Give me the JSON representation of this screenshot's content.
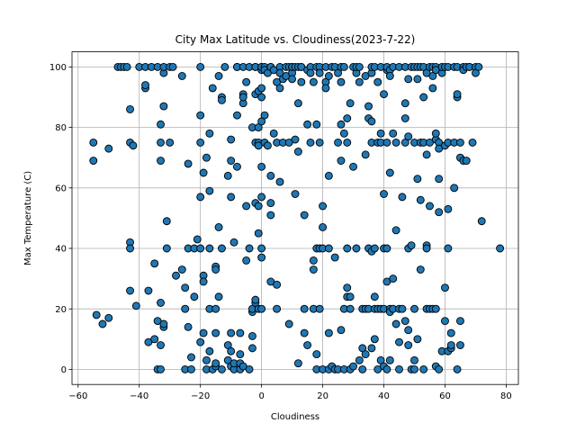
{
  "chart_data": {
    "type": "scatter",
    "title": "City Max Latitude vs. Cloudiness(2023-7-22)",
    "xlabel": "Cloudiness",
    "ylabel": "Max Temperature (C)",
    "xlim": [
      -62,
      84
    ],
    "ylim": [
      -5,
      105
    ],
    "xticks": [
      -60,
      -40,
      -20,
      0,
      20,
      40,
      60,
      80
    ],
    "yticks": [
      0,
      20,
      40,
      60,
      80,
      100
    ],
    "xtick_labels": [
      "−60",
      "−40",
      "−20",
      "0",
      "20",
      "40",
      "60",
      "80"
    ],
    "ytick_labels": [
      "0",
      "20",
      "40",
      "60",
      "80",
      "100"
    ],
    "grid": true,
    "marker_color": "#1f77b4",
    "marker_edge_color": "#000000",
    "points": [
      [
        -55,
        75
      ],
      [
        -55,
        69
      ],
      [
        -54,
        18
      ],
      [
        -52,
        15
      ],
      [
        -50,
        17
      ],
      [
        -50,
        73
      ],
      [
        -47,
        100
      ],
      [
        -46,
        100
      ],
      [
        -45,
        100
      ],
      [
        -44,
        100
      ],
      [
        -43,
        75
      ],
      [
        -43,
        86
      ],
      [
        -43,
        42
      ],
      [
        -43,
        40
      ],
      [
        -43,
        26
      ],
      [
        -42,
        74
      ],
      [
        -41,
        21
      ],
      [
        -40,
        100
      ],
      [
        -38,
        100
      ],
      [
        -38,
        93
      ],
      [
        -38,
        94
      ],
      [
        -37,
        9
      ],
      [
        -37,
        26
      ],
      [
        -36,
        100
      ],
      [
        -35,
        10
      ],
      [
        -35,
        35
      ],
      [
        -34,
        16
      ],
      [
        -34,
        0
      ],
      [
        -34,
        100
      ],
      [
        -33,
        8
      ],
      [
        -33,
        22
      ],
      [
        -33,
        75
      ],
      [
        -33,
        81
      ],
      [
        -33,
        69
      ],
      [
        -33,
        0
      ],
      [
        -32,
        14
      ],
      [
        -32,
        15
      ],
      [
        -32,
        98
      ],
      [
        -32,
        100
      ],
      [
        -32,
        87
      ],
      [
        -31,
        49
      ],
      [
        -31,
        40
      ],
      [
        -30,
        100
      ],
      [
        -30,
        75
      ],
      [
        -29,
        100
      ],
      [
        -28,
        31
      ],
      [
        -26,
        97
      ],
      [
        -26,
        33
      ],
      [
        -25,
        27
      ],
      [
        -25,
        20
      ],
      [
        -25,
        0
      ],
      [
        -24,
        68
      ],
      [
        -24,
        40
      ],
      [
        -24,
        14
      ],
      [
        -23,
        0
      ],
      [
        -23,
        4
      ],
      [
        -22,
        24
      ],
      [
        -22,
        40
      ],
      [
        -21,
        43
      ],
      [
        -20,
        100
      ],
      [
        -20,
        84
      ],
      [
        -20,
        57
      ],
      [
        -20,
        75
      ],
      [
        -20,
        9
      ],
      [
        -20,
        40
      ],
      [
        -19,
        65
      ],
      [
        -19,
        31
      ],
      [
        -19,
        29
      ],
      [
        -19,
        12
      ],
      [
        -18,
        0
      ],
      [
        -18,
        70
      ],
      [
        -18,
        3
      ],
      [
        -17,
        6
      ],
      [
        -17,
        20
      ],
      [
        -17,
        78
      ],
      [
        -17,
        59
      ],
      [
        -17,
        40
      ],
      [
        -16,
        0
      ],
      [
        -16,
        93
      ],
      [
        -15,
        12
      ],
      [
        -15,
        1
      ],
      [
        -15,
        20
      ],
      [
        -15,
        34
      ],
      [
        -15,
        33
      ],
      [
        -15,
        2
      ],
      [
        -14,
        24
      ],
      [
        -14,
        97
      ],
      [
        -14,
        47
      ],
      [
        -13,
        0
      ],
      [
        -13,
        90
      ],
      [
        -13,
        89
      ],
      [
        -13,
        40
      ],
      [
        -12,
        100
      ],
      [
        -11,
        64
      ],
      [
        -11,
        8
      ],
      [
        -11,
        3
      ],
      [
        -10,
        12
      ],
      [
        -10,
        76
      ],
      [
        -10,
        69
      ],
      [
        -10,
        57
      ],
      [
        -10,
        6
      ],
      [
        -10,
        1
      ],
      [
        -9,
        0
      ],
      [
        -9,
        42
      ],
      [
        -9,
        2
      ],
      [
        -8,
        100
      ],
      [
        -8,
        100
      ],
      [
        -8,
        84
      ],
      [
        -8,
        67
      ],
      [
        -7,
        0
      ],
      [
        -7,
        2
      ],
      [
        -7,
        12
      ],
      [
        -7,
        5
      ],
      [
        -6,
        100
      ],
      [
        -6,
        91
      ],
      [
        -6,
        88
      ],
      [
        -6,
        90
      ],
      [
        -6,
        1
      ],
      [
        -5,
        36
      ],
      [
        -5,
        54
      ],
      [
        -5,
        95
      ],
      [
        -4,
        100
      ],
      [
        -4,
        0
      ],
      [
        -4,
        40
      ],
      [
        -3,
        11
      ],
      [
        -3,
        7
      ],
      [
        -3,
        19
      ],
      [
        -3,
        80
      ],
      [
        -3,
        20
      ],
      [
        -2,
        22
      ],
      [
        -2,
        23
      ],
      [
        -2,
        100
      ],
      [
        -2,
        91
      ],
      [
        -2,
        75
      ],
      [
        -2,
        55
      ],
      [
        -2,
        100
      ],
      [
        -1,
        45
      ],
      [
        -1,
        54
      ],
      [
        -1,
        20
      ],
      [
        -1,
        80
      ],
      [
        -1,
        75
      ],
      [
        -1,
        92
      ],
      [
        -1,
        74
      ],
      [
        0,
        100
      ],
      [
        0,
        99
      ],
      [
        0,
        100
      ],
      [
        0,
        93
      ],
      [
        0,
        90
      ],
      [
        0,
        82
      ],
      [
        0,
        67
      ],
      [
        0,
        57
      ],
      [
        0,
        40
      ],
      [
        0,
        37
      ],
      [
        0,
        20
      ],
      [
        1,
        100
      ],
      [
        1,
        99
      ],
      [
        1,
        84
      ],
      [
        1,
        75
      ],
      [
        2,
        74
      ],
      [
        2,
        98
      ],
      [
        3,
        100
      ],
      [
        3,
        55
      ],
      [
        3,
        51
      ],
      [
        3,
        64
      ],
      [
        3,
        29
      ],
      [
        3,
        100
      ],
      [
        4,
        99
      ],
      [
        4,
        78
      ],
      [
        5,
        75
      ],
      [
        5,
        95
      ],
      [
        5,
        28
      ],
      [
        5,
        20
      ],
      [
        6,
        100
      ],
      [
        6,
        62
      ],
      [
        6,
        93
      ],
      [
        6,
        98
      ],
      [
        7,
        75
      ],
      [
        7,
        96
      ],
      [
        8,
        97
      ],
      [
        8,
        100
      ],
      [
        9,
        100
      ],
      [
        9,
        75
      ],
      [
        9,
        15
      ],
      [
        10,
        100
      ],
      [
        10,
        98
      ],
      [
        10,
        100
      ],
      [
        10,
        96
      ],
      [
        11,
        100
      ],
      [
        11,
        58
      ],
      [
        11,
        76
      ],
      [
        12,
        88
      ],
      [
        12,
        72
      ],
      [
        12,
        100
      ],
      [
        12,
        2
      ],
      [
        13,
        100
      ],
      [
        13,
        95
      ],
      [
        13,
        100
      ],
      [
        14,
        20
      ],
      [
        14,
        12
      ],
      [
        14,
        51
      ],
      [
        15,
        81
      ],
      [
        15,
        99
      ],
      [
        15,
        8
      ],
      [
        16,
        100
      ],
      [
        16,
        75
      ],
      [
        16,
        98
      ],
      [
        17,
        95
      ],
      [
        17,
        36
      ],
      [
        17,
        33
      ],
      [
        17,
        20
      ],
      [
        18,
        100
      ],
      [
        18,
        81
      ],
      [
        18,
        5
      ],
      [
        18,
        0
      ],
      [
        18,
        40
      ],
      [
        19,
        100
      ],
      [
        19,
        98
      ],
      [
        19,
        75
      ],
      [
        19,
        40
      ],
      [
        19,
        20
      ],
      [
        20,
        54
      ],
      [
        20,
        47
      ],
      [
        20,
        40
      ],
      [
        20,
        0
      ],
      [
        21,
        100
      ],
      [
        21,
        95
      ],
      [
        21,
        93
      ],
      [
        22,
        97
      ],
      [
        22,
        64
      ],
      [
        22,
        40
      ],
      [
        22,
        12
      ],
      [
        22,
        0
      ],
      [
        23,
        100
      ],
      [
        23,
        1
      ],
      [
        24,
        100
      ],
      [
        24,
        37
      ],
      [
        24,
        0
      ],
      [
        25,
        75
      ],
      [
        25,
        98
      ],
      [
        25,
        0
      ],
      [
        26,
        100
      ],
      [
        26,
        95
      ],
      [
        26,
        81
      ],
      [
        26,
        69
      ],
      [
        26,
        13
      ],
      [
        27,
        0
      ],
      [
        27,
        100
      ],
      [
        27,
        78
      ],
      [
        27,
        20
      ],
      [
        28,
        83
      ],
      [
        28,
        24
      ],
      [
        28,
        27
      ],
      [
        28,
        75
      ],
      [
        28,
        40
      ],
      [
        29,
        20
      ],
      [
        29,
        24
      ],
      [
        29,
        88
      ],
      [
        29,
        0
      ],
      [
        30,
        100
      ],
      [
        30,
        67
      ],
      [
        30,
        1
      ],
      [
        31,
        40
      ],
      [
        31,
        98
      ],
      [
        31,
        100
      ],
      [
        32,
        100
      ],
      [
        32,
        95
      ],
      [
        32,
        3
      ],
      [
        33,
        7
      ],
      [
        33,
        0
      ],
      [
        33,
        20
      ],
      [
        34,
        5
      ],
      [
        34,
        71
      ],
      [
        34,
        97
      ],
      [
        34,
        20
      ],
      [
        35,
        87
      ],
      [
        35,
        83
      ],
      [
        35,
        40
      ],
      [
        35,
        20
      ],
      [
        36,
        82
      ],
      [
        36,
        98
      ],
      [
        36,
        100
      ],
      [
        36,
        39
      ],
      [
        36,
        75
      ],
      [
        36,
        7
      ],
      [
        37,
        40
      ],
      [
        37,
        100
      ],
      [
        37,
        24
      ],
      [
        37,
        10
      ],
      [
        37,
        20
      ],
      [
        38,
        95
      ],
      [
        38,
        75
      ],
      [
        38,
        20
      ],
      [
        38,
        0
      ],
      [
        39,
        20
      ],
      [
        39,
        78
      ],
      [
        39,
        100
      ],
      [
        39,
        75
      ],
      [
        39,
        3
      ],
      [
        40,
        40
      ],
      [
        40,
        91
      ],
      [
        40,
        58
      ],
      [
        40,
        20
      ],
      [
        40,
        1
      ],
      [
        41,
        40
      ],
      [
        41,
        29
      ],
      [
        41,
        75
      ],
      [
        41,
        99
      ],
      [
        41,
        100
      ],
      [
        41,
        0
      ],
      [
        42,
        99
      ],
      [
        42,
        97
      ],
      [
        42,
        65
      ],
      [
        42,
        20
      ],
      [
        42,
        19
      ],
      [
        42,
        3
      ],
      [
        43,
        30
      ],
      [
        43,
        100
      ],
      [
        43,
        78
      ],
      [
        43,
        20
      ],
      [
        44,
        46
      ],
      [
        44,
        15
      ],
      [
        44,
        75
      ],
      [
        45,
        9
      ],
      [
        45,
        100
      ],
      [
        45,
        0
      ],
      [
        45,
        20
      ],
      [
        46,
        57
      ],
      [
        46,
        20
      ],
      [
        47,
        83
      ],
      [
        47,
        88
      ],
      [
        47,
        100
      ],
      [
        47,
        75
      ],
      [
        47,
        16
      ],
      [
        48,
        96
      ],
      [
        48,
        77
      ],
      [
        48,
        40
      ],
      [
        48,
        13
      ],
      [
        48,
        8
      ],
      [
        49,
        100
      ],
      [
        49,
        41
      ],
      [
        49,
        0
      ],
      [
        50,
        75
      ],
      [
        50,
        100
      ],
      [
        50,
        3
      ],
      [
        50,
        20
      ],
      [
        50,
        0
      ],
      [
        51,
        96
      ],
      [
        51,
        100
      ],
      [
        51,
        63
      ],
      [
        51,
        10
      ],
      [
        52,
        100
      ],
      [
        52,
        33
      ],
      [
        52,
        75
      ],
      [
        52,
        56
      ],
      [
        53,
        100
      ],
      [
        53,
        75
      ],
      [
        53,
        90
      ],
      [
        53,
        0
      ],
      [
        54,
        20
      ],
      [
        54,
        41
      ],
      [
        54,
        40
      ],
      [
        54,
        71
      ],
      [
        54,
        98
      ],
      [
        55,
        100
      ],
      [
        55,
        75
      ],
      [
        55,
        54
      ],
      [
        55,
        20
      ],
      [
        56,
        20
      ],
      [
        56,
        93
      ],
      [
        56,
        100
      ],
      [
        56,
        97
      ],
      [
        57,
        100
      ],
      [
        57,
        76
      ],
      [
        57,
        99
      ],
      [
        57,
        78
      ],
      [
        57,
        20
      ],
      [
        57,
        1
      ],
      [
        58,
        0
      ],
      [
        58,
        63
      ],
      [
        58,
        52
      ],
      [
        58,
        75
      ],
      [
        58,
        73
      ],
      [
        59,
        6
      ],
      [
        59,
        98
      ],
      [
        59,
        100
      ],
      [
        60,
        100
      ],
      [
        60,
        74
      ],
      [
        60,
        27
      ],
      [
        60,
        16
      ],
      [
        61,
        53
      ],
      [
        61,
        40
      ],
      [
        61,
        75
      ],
      [
        61,
        6
      ],
      [
        61,
        100
      ],
      [
        62,
        7
      ],
      [
        62,
        12
      ],
      [
        62,
        8
      ],
      [
        63,
        60
      ],
      [
        63,
        75
      ],
      [
        63,
        100
      ],
      [
        64,
        100
      ],
      [
        64,
        90
      ],
      [
        64,
        91
      ],
      [
        64,
        0
      ],
      [
        65,
        75
      ],
      [
        65,
        70
      ],
      [
        65,
        16
      ],
      [
        65,
        8
      ],
      [
        66,
        100
      ],
      [
        66,
        99
      ],
      [
        66,
        69
      ],
      [
        67,
        100
      ],
      [
        67,
        69
      ],
      [
        68,
        100
      ],
      [
        68,
        100
      ],
      [
        69,
        75
      ],
      [
        70,
        100
      ],
      [
        70,
        98
      ],
      [
        71,
        100
      ],
      [
        72,
        49
      ],
      [
        78,
        40
      ]
    ]
  }
}
